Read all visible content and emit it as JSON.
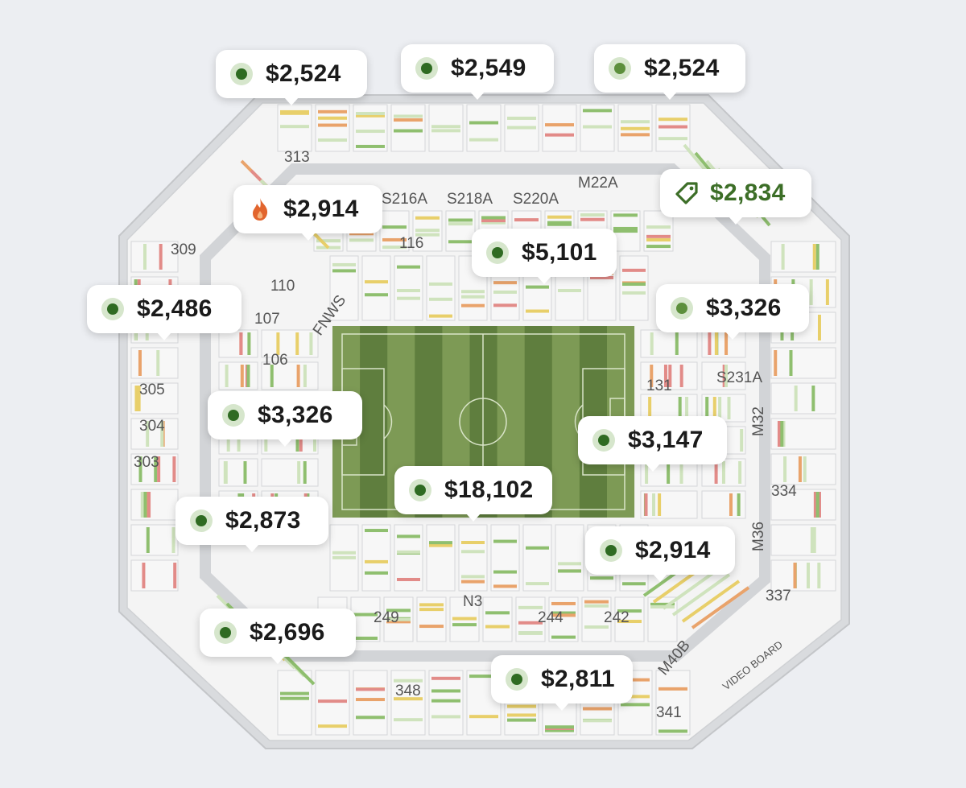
{
  "colors": {
    "background": "#eceef2",
    "stadium_outline": "#cfd1d4",
    "field_dark": "#5f7e3e",
    "field_light": "#7d9a55",
    "row_available_green": "#8fbf6f",
    "row_pale_green": "#cfe3bd",
    "row_yellow": "#e8cf6a",
    "row_orange": "#e9a36b",
    "row_red": "#e28b88",
    "price_dark": "#1b1b1b",
    "deal_green": "#3c6e27",
    "hot_orange": "#e2652d"
  },
  "section_labels": [
    "313",
    "S216A",
    "S218A",
    "S220A",
    "M22A",
    "309",
    "116",
    "110",
    "FNWS",
    "107",
    "106",
    "305",
    "304",
    "303",
    "131",
    "S231A",
    "M32",
    "334",
    "M36",
    "N3",
    "249",
    "244",
    "242",
    "337",
    "M40B",
    "VIDEO BOARD",
    "348",
    "341"
  ],
  "price_pins": [
    {
      "id": "pin-1",
      "price": "$2,524",
      "type": "standard"
    },
    {
      "id": "pin-2",
      "price": "$2,549",
      "type": "standard"
    },
    {
      "id": "pin-3",
      "price": "$2,524",
      "type": "standard"
    },
    {
      "id": "pin-4",
      "price": "$2,914",
      "type": "hot",
      "icon": "flame-icon"
    },
    {
      "id": "pin-5",
      "price": "$2,834",
      "type": "deal",
      "icon": "tag-icon"
    },
    {
      "id": "pin-6",
      "price": "$5,101",
      "type": "standard"
    },
    {
      "id": "pin-7",
      "price": "$2,486",
      "type": "standard"
    },
    {
      "id": "pin-8",
      "price": "$3,326",
      "type": "standard"
    },
    {
      "id": "pin-9",
      "price": "$3,326",
      "type": "standard"
    },
    {
      "id": "pin-10",
      "price": "$3,147",
      "type": "standard"
    },
    {
      "id": "pin-11",
      "price": "$18,102",
      "type": "standard"
    },
    {
      "id": "pin-12",
      "price": "$2,873",
      "type": "standard"
    },
    {
      "id": "pin-13",
      "price": "$2,914",
      "type": "standard"
    },
    {
      "id": "pin-14",
      "price": "$2,696",
      "type": "standard"
    },
    {
      "id": "pin-15",
      "price": "$2,811",
      "type": "standard"
    }
  ]
}
